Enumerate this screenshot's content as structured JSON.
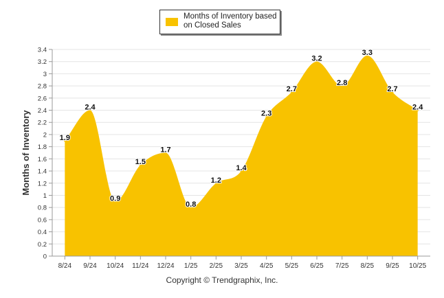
{
  "chart_data": {
    "type": "area",
    "title": "",
    "legend": {
      "label_line1": "Months of Inventory based",
      "label_line2": "on Closed Sales",
      "placement": "top-center"
    },
    "ylabel": "Months of Inventory",
    "xlabel": "",
    "ylim": [
      0,
      3.4
    ],
    "y_ticks": [
      "0",
      "0.2",
      "0.4",
      "0.6",
      "0.8",
      "1",
      "1.2",
      "1.4",
      "1.6",
      "1.8",
      "2",
      "2.2",
      "2.4",
      "2.6",
      "2.8",
      "3",
      "3.2",
      "3.4"
    ],
    "categories": [
      "8/24",
      "9/24",
      "10/24",
      "11/24",
      "12/24",
      "1/25",
      "2/25",
      "3/25",
      "4/25",
      "5/25",
      "6/25",
      "7/25",
      "8/25",
      "9/25",
      "10/25"
    ],
    "series": [
      {
        "name": "Months of Inventory based on Closed Sales",
        "values": [
          1.9,
          2.4,
          0.9,
          1.5,
          1.7,
          0.8,
          1.2,
          1.4,
          2.3,
          2.7,
          3.2,
          2.8,
          3.3,
          2.7,
          2.4
        ],
        "labels": [
          "1.9",
          "2.4",
          "0.9",
          "1.5",
          "1.7",
          "0.8",
          "1.2",
          "1.4",
          "2.3",
          "2.7",
          "3.2",
          "2.8",
          "3.3",
          "2.7",
          "2.4"
        ]
      }
    ],
    "grid": true,
    "colors": {
      "fill": "#F8C200",
      "grid": "#e4e4e4",
      "axis": "#999999",
      "label": "#111111"
    }
  },
  "footer": {
    "copyright": "Copyright © Trendgraphix, Inc."
  }
}
